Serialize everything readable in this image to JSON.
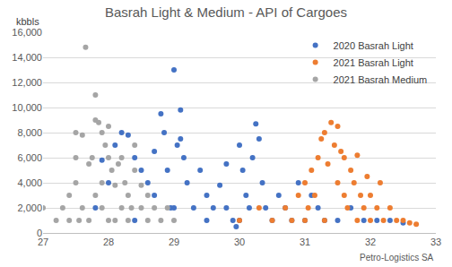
{
  "chart_data": {
    "type": "scatter",
    "title": "Basrah Light & Medium - API of Cargoes",
    "ylabel": "kbbls",
    "annotations": [
      "Petro-Logistics SA"
    ],
    "xlim": [
      27,
      33
    ],
    "xticks": [
      27,
      28,
      29,
      30,
      31,
      32,
      33
    ],
    "ylim": [
      0,
      16000
    ],
    "yticks": [
      0,
      {
        "value": 2000,
        "label": "2,000"
      },
      {
        "value": 4000,
        "label": "4,000"
      },
      {
        "value": 6000,
        "label": "6,000"
      },
      {
        "value": 8000,
        "label": "8,000"
      },
      {
        "value": 10000,
        "label": "10,000"
      },
      {
        "value": 12000,
        "label": "12,000"
      },
      {
        "value": 14000,
        "label": "14,000"
      },
      {
        "value": 16000,
        "label": "16,000"
      }
    ],
    "grid": true,
    "legend": "upper right",
    "marker": "circle",
    "series": [
      {
        "name": "2020 Basrah Light",
        "color": "#4472C4",
        "x": [
          27.8,
          27.9,
          28.0,
          28.1,
          28.2,
          28.3,
          28.4,
          28.5,
          28.6,
          28.7,
          28.8,
          28.85,
          28.9,
          28.95,
          29.0,
          29.05,
          29.1,
          29.1,
          29.15,
          29.2,
          29.3,
          29.4,
          29.5,
          29.6,
          29.7,
          29.8,
          29.9,
          29.95,
          30.0,
          30.05,
          30.1,
          30.15,
          30.2,
          30.25,
          30.3,
          30.35,
          30.4,
          30.5,
          30.6,
          30.7,
          30.8,
          30.9,
          31.0,
          31.1,
          31.2,
          31.3,
          31.5,
          31.7,
          31.9,
          32.1,
          32.3,
          32.5,
          29.5,
          28.4,
          29.0,
          30.0,
          28.7,
          29.8
        ],
        "values": [
          2000,
          5800,
          4000,
          7000,
          8000,
          7800,
          6000,
          5000,
          4000,
          3000,
          9500,
          8000,
          5000,
          2000,
          13000,
          7000,
          9800,
          7500,
          6000,
          4000,
          2000,
          5000,
          1000,
          2000,
          3800,
          2000,
          1000,
          500,
          7000,
          5000,
          3000,
          2000,
          6000,
          8700,
          7500,
          4000,
          2000,
          1000,
          3000,
          2000,
          1000,
          4000,
          1000,
          3000,
          2000,
          1000,
          1000,
          2000,
          1000,
          1000,
          1000,
          800,
          3000,
          1000,
          2000,
          1000,
          6500,
          5500
        ]
      },
      {
        "name": "2021 Basrah Light",
        "color": "#ED7D31",
        "x": [
          30.0,
          30.3,
          30.5,
          30.7,
          30.9,
          31.0,
          31.05,
          31.1,
          31.15,
          31.2,
          31.25,
          31.3,
          31.35,
          31.4,
          31.45,
          31.5,
          31.5,
          31.55,
          31.6,
          31.6,
          31.65,
          31.7,
          31.75,
          31.8,
          31.85,
          31.9,
          31.95,
          32.0,
          32.1,
          32.15,
          32.2,
          32.3,
          32.4,
          32.5,
          32.6,
          32.7,
          31.3,
          31.0,
          30.8,
          31.8,
          32.0
        ],
        "values": [
          1000,
          2000,
          1000,
          2000,
          3000,
          4000,
          2000,
          5000,
          3000,
          6000,
          7500,
          8000,
          5500,
          8800,
          7000,
          8500,
          4000,
          6500,
          3000,
          6000,
          2000,
          5000,
          4000,
          6200,
          3000,
          2000,
          4500,
          3000,
          2000,
          4000,
          1000,
          2000,
          1000,
          1000,
          800,
          700,
          1000,
          1000,
          1000,
          1000,
          1000
        ]
      },
      {
        "name": "2021 Basrah Medium",
        "color": "#A5A5A5",
        "x": [
          27.0,
          27.2,
          27.3,
          27.4,
          27.4,
          27.5,
          27.5,
          27.5,
          27.6,
          27.65,
          27.6,
          27.7,
          27.7,
          27.75,
          27.8,
          27.8,
          27.85,
          27.9,
          27.9,
          27.9,
          27.95,
          28.0,
          28.0,
          28.05,
          28.1,
          28.1,
          28.15,
          28.2,
          28.2,
          28.25,
          28.3,
          28.3,
          28.4,
          28.4,
          28.5,
          28.5,
          28.6,
          28.6,
          28.7,
          28.8,
          28.9,
          29.0,
          28.0,
          27.8,
          28.35,
          27.55
        ],
        "values": [
          2000,
          1000,
          2000,
          1000,
          3000,
          4000,
          6000,
          8000,
          7800,
          14800,
          2000,
          1000,
          5500,
          6000,
          9000,
          11000,
          8800,
          8000,
          4000,
          2000,
          7000,
          8500,
          6000,
          5000,
          3800,
          1000,
          5500,
          6000,
          2000,
          4000,
          3000,
          1000,
          7000,
          5000,
          3800,
          2000,
          1000,
          3000,
          2000,
          1000,
          2000,
          1000,
          1000,
          3000,
          2000,
          1000
        ]
      }
    ]
  }
}
